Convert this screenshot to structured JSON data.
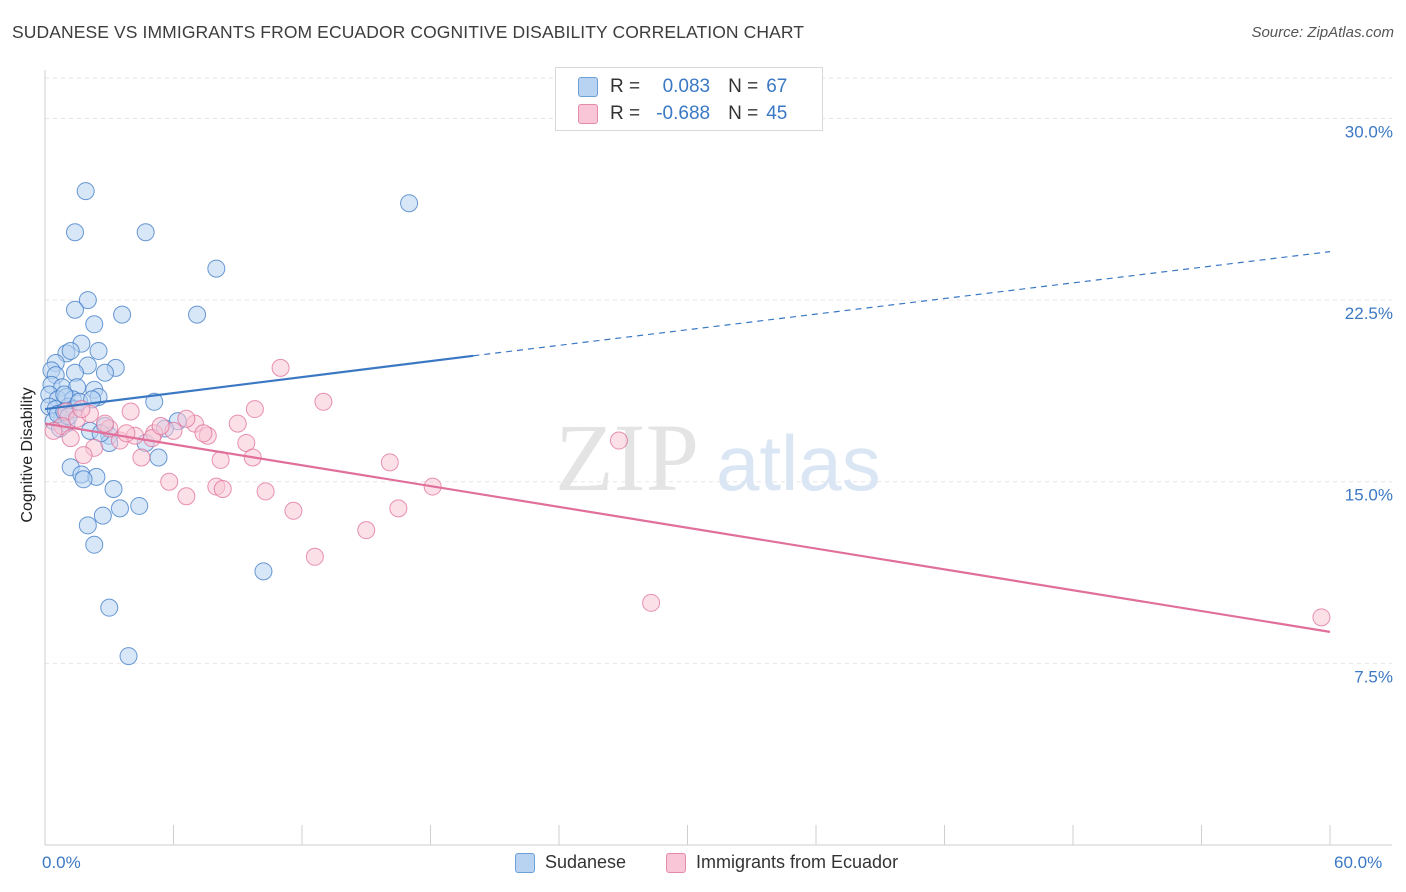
{
  "header": {
    "title": "SUDANESE VS IMMIGRANTS FROM ECUADOR COGNITIVE DISABILITY CORRELATION CHART",
    "source": "Source: ZipAtlas.com"
  },
  "legend": {
    "r_label": "R =",
    "n_label": "N =",
    "sudanese": {
      "r": "0.083",
      "n": "67"
    },
    "ecuador": {
      "r": "-0.688",
      "n": "45"
    }
  },
  "bottom_legend": {
    "sudanese": "Sudanese",
    "ecuador": "Immigrants from Ecuador"
  },
  "watermark": {
    "zip": "ZIP",
    "atlas": "atlas"
  },
  "chart_data": {
    "type": "scatter",
    "ylabel": "Cognitive Disability",
    "xlim": [
      0,
      60
    ],
    "ylim": [
      0,
      32
    ],
    "x_tick_labels": {
      "min": "0.0%",
      "max": "60.0%"
    },
    "y_ticks": [
      {
        "value": 30.0,
        "label": "30.0%"
      },
      {
        "value": 22.5,
        "label": "22.5%"
      },
      {
        "value": 15.0,
        "label": "15.0%"
      },
      {
        "value": 7.5,
        "label": "7.5%"
      }
    ],
    "grid": true,
    "colors": {
      "sudanese": "#3b78c4",
      "ecuador": "#e06f9a",
      "sudanese_fill": "#b8d3f2",
      "ecuador_fill": "#f8c6d6"
    },
    "series": [
      {
        "name": "Sudanese",
        "key": "sudanese",
        "trend": {
          "x": [
            0,
            20
          ],
          "y": [
            18.0,
            20.2
          ],
          "dashed_to_x": 60,
          "dashed_to_y": 24.5
        },
        "points": [
          [
            1.9,
            27.0
          ],
          [
            1.4,
            25.3
          ],
          [
            4.7,
            25.3
          ],
          [
            17.0,
            26.5
          ],
          [
            8.0,
            23.8
          ],
          [
            2.0,
            22.5
          ],
          [
            1.4,
            22.1
          ],
          [
            3.6,
            21.9
          ],
          [
            7.1,
            21.9
          ],
          [
            2.3,
            21.5
          ],
          [
            1.7,
            20.7
          ],
          [
            2.5,
            20.4
          ],
          [
            1.0,
            20.3
          ],
          [
            1.2,
            20.4
          ],
          [
            0.5,
            19.9
          ],
          [
            3.3,
            19.7
          ],
          [
            2.0,
            19.8
          ],
          [
            0.3,
            19.6
          ],
          [
            0.5,
            19.4
          ],
          [
            1.4,
            19.5
          ],
          [
            2.8,
            19.5
          ],
          [
            0.3,
            19.0
          ],
          [
            0.8,
            18.9
          ],
          [
            1.5,
            18.9
          ],
          [
            2.3,
            18.8
          ],
          [
            0.2,
            18.6
          ],
          [
            0.6,
            18.4
          ],
          [
            1.0,
            18.5
          ],
          [
            1.3,
            18.4
          ],
          [
            2.5,
            18.5
          ],
          [
            5.1,
            18.3
          ],
          [
            0.2,
            18.1
          ],
          [
            0.5,
            18.0
          ],
          [
            1.1,
            18.1
          ],
          [
            1.4,
            18.0
          ],
          [
            0.8,
            17.6
          ],
          [
            0.4,
            17.5
          ],
          [
            1.0,
            17.4
          ],
          [
            6.2,
            17.5
          ],
          [
            0.7,
            17.2
          ],
          [
            2.1,
            17.1
          ],
          [
            2.8,
            17.3
          ],
          [
            5.6,
            17.2
          ],
          [
            3.0,
            16.9
          ],
          [
            4.7,
            16.6
          ],
          [
            3.0,
            16.6
          ],
          [
            5.3,
            16.0
          ],
          [
            1.2,
            15.6
          ],
          [
            1.7,
            15.3
          ],
          [
            2.4,
            15.2
          ],
          [
            1.8,
            15.1
          ],
          [
            3.2,
            14.7
          ],
          [
            4.4,
            14.0
          ],
          [
            3.5,
            13.9
          ],
          [
            2.7,
            13.6
          ],
          [
            2.0,
            13.2
          ],
          [
            2.3,
            12.4
          ],
          [
            10.2,
            11.3
          ],
          [
            3.0,
            9.8
          ],
          [
            3.9,
            7.8
          ],
          [
            0.9,
            18.6
          ],
          [
            0.6,
            17.8
          ],
          [
            1.6,
            18.3
          ],
          [
            0.9,
            17.9
          ],
          [
            2.6,
            17.0
          ],
          [
            1.1,
            17.7
          ],
          [
            2.2,
            18.4
          ]
        ]
      },
      {
        "name": "Immigrants from Ecuador",
        "key": "ecuador",
        "trend": {
          "x": [
            0,
            60
          ],
          "y": [
            17.4,
            8.8
          ]
        },
        "points": [
          [
            11.0,
            19.7
          ],
          [
            13.0,
            18.3
          ],
          [
            9.8,
            18.0
          ],
          [
            4.0,
            17.9
          ],
          [
            1.0,
            17.9
          ],
          [
            7.0,
            17.4
          ],
          [
            9.0,
            17.4
          ],
          [
            3.0,
            17.2
          ],
          [
            6.0,
            17.1
          ],
          [
            5.1,
            17.0
          ],
          [
            7.6,
            16.9
          ],
          [
            5.0,
            16.8
          ],
          [
            3.5,
            16.7
          ],
          [
            9.4,
            16.6
          ],
          [
            26.8,
            16.7
          ],
          [
            2.3,
            16.4
          ],
          [
            1.8,
            16.1
          ],
          [
            9.7,
            16.0
          ],
          [
            4.5,
            16.0
          ],
          [
            8.2,
            15.9
          ],
          [
            16.1,
            15.8
          ],
          [
            5.8,
            15.0
          ],
          [
            8.0,
            14.8
          ],
          [
            8.3,
            14.7
          ],
          [
            10.3,
            14.6
          ],
          [
            18.1,
            14.8
          ],
          [
            6.6,
            14.4
          ],
          [
            16.5,
            13.9
          ],
          [
            11.6,
            13.8
          ],
          [
            15.0,
            13.0
          ],
          [
            12.6,
            11.9
          ],
          [
            28.3,
            10.0
          ],
          [
            59.6,
            9.4
          ],
          [
            0.8,
            17.3
          ],
          [
            1.5,
            17.6
          ],
          [
            2.8,
            17.4
          ],
          [
            4.2,
            16.9
          ],
          [
            5.4,
            17.3
          ],
          [
            6.6,
            17.6
          ],
          [
            0.4,
            17.1
          ],
          [
            1.2,
            16.8
          ],
          [
            3.8,
            17.0
          ],
          [
            7.4,
            17.0
          ],
          [
            2.1,
            17.8
          ],
          [
            1.7,
            18.0
          ]
        ]
      }
    ]
  }
}
